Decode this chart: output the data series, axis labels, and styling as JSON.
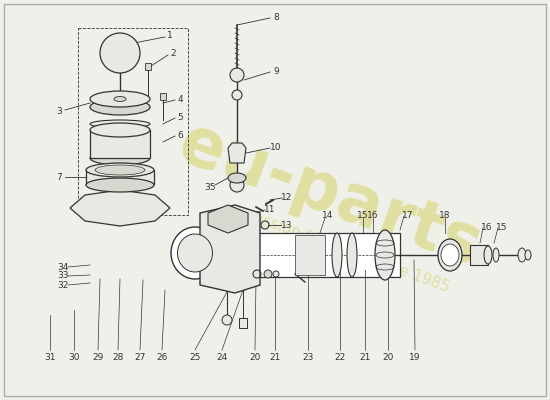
{
  "background_color": "#f0f0eb",
  "watermark_text": "eu-parts",
  "watermark_subtext": "a passion for parts since 1985",
  "watermark_color": "#dede9a",
  "border_color": "#bbbbbb",
  "line_color": "#333333",
  "gray_fill": "#d8d8d0",
  "light_gray": "#e8e8e4"
}
